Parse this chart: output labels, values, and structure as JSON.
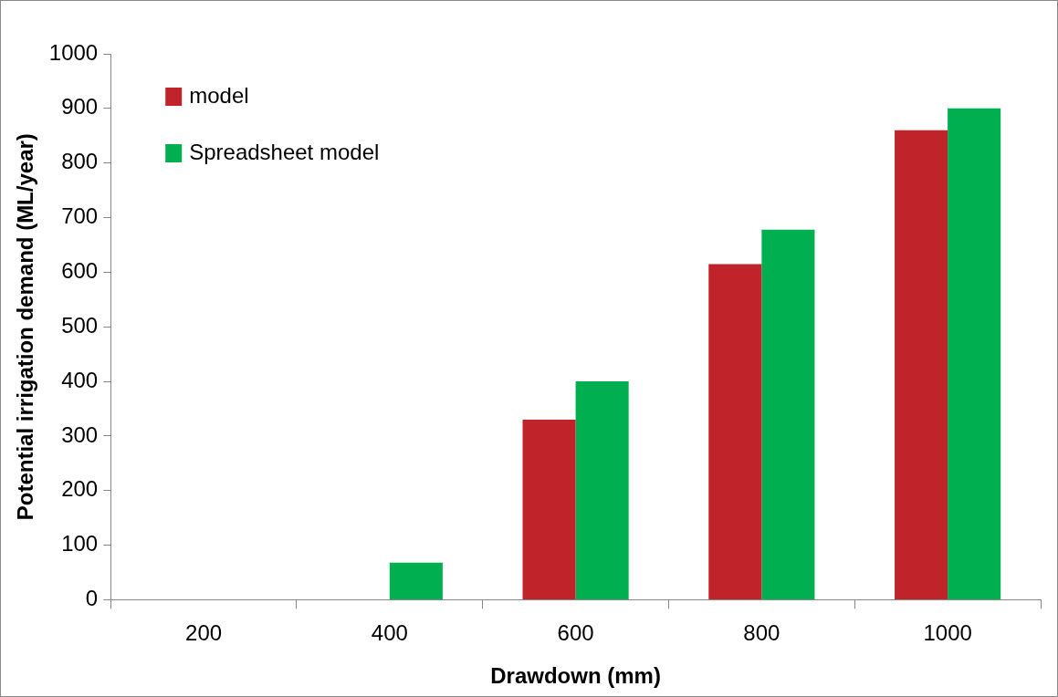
{
  "chart_data": {
    "type": "bar",
    "xlabel": "Drawdown (mm)",
    "ylabel": "Potential irrigation demand (ML/year)",
    "categories": [
      "200",
      "400",
      "600",
      "800",
      "1000"
    ],
    "series": [
      {
        "name": "model",
        "color": "#c0232a",
        "values": [
          0,
          0,
          330,
          615,
          860
        ]
      },
      {
        "name": "Spreadsheet model",
        "color": "#00b050",
        "values": [
          0,
          68,
          400,
          678,
          900
        ]
      }
    ],
    "ylim": [
      0,
      1000
    ],
    "yticks": [
      0,
      100,
      200,
      300,
      400,
      500,
      600,
      700,
      800,
      900,
      1000
    ],
    "grid": false,
    "legend": "top left"
  }
}
